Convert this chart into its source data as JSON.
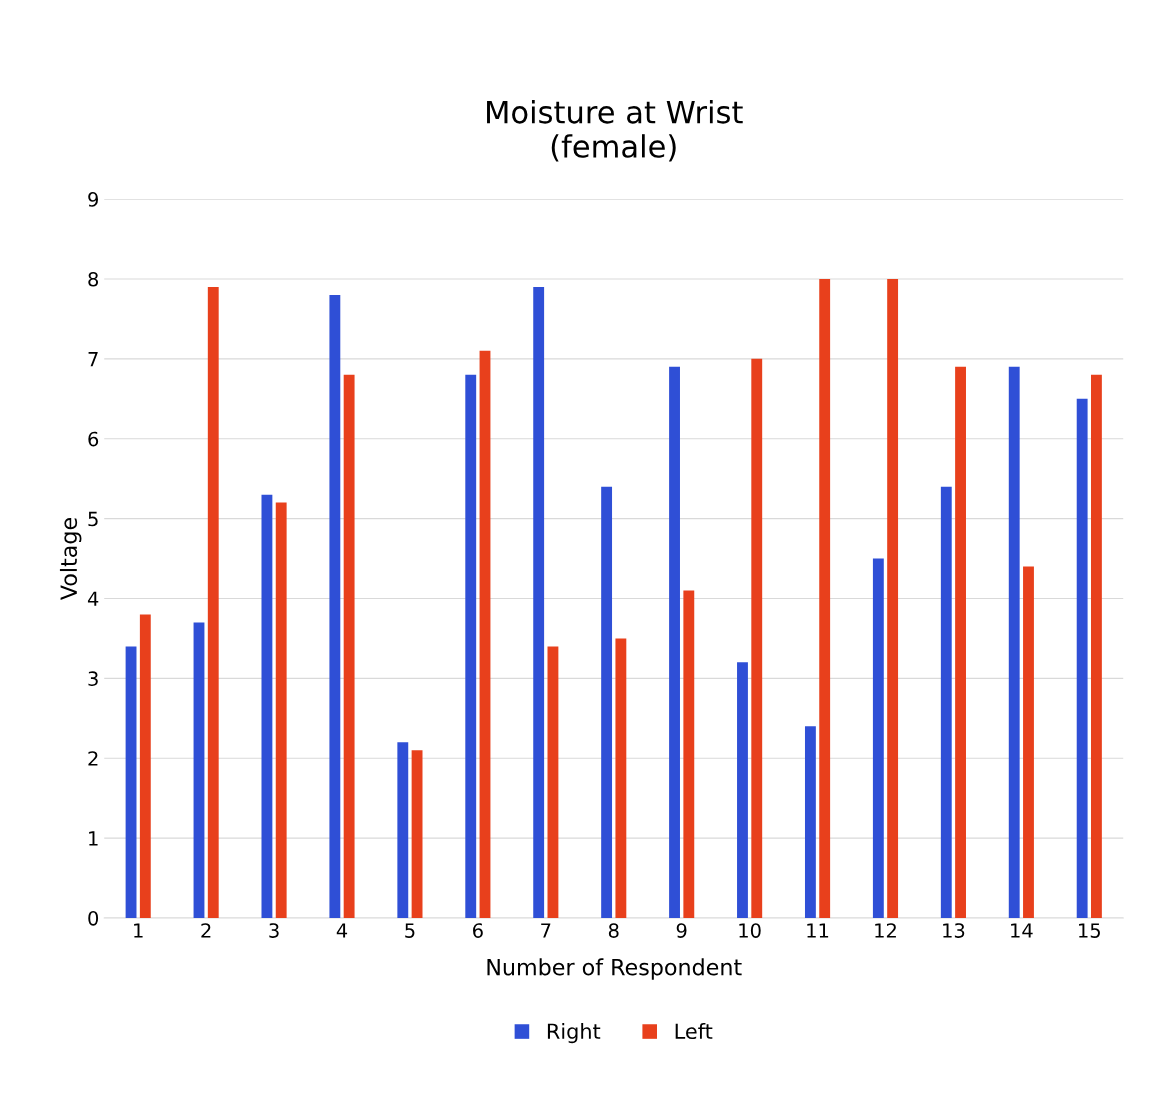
{
  "chart_data": {
    "type": "bar",
    "title": "Moisture at Wrist\n(female)",
    "xlabel": "Number of Respondent",
    "ylabel": "Voltage",
    "categories": [
      "1",
      "2",
      "3",
      "4",
      "5",
      "6",
      "7",
      "8",
      "9",
      "10",
      "11",
      "12",
      "13",
      "14",
      "15"
    ],
    "series": [
      {
        "name": "Right",
        "color": "#2f4fd6",
        "values": [
          3.4,
          3.7,
          5.3,
          7.8,
          2.2,
          6.8,
          7.9,
          5.4,
          6.9,
          3.2,
          2.4,
          4.5,
          5.4,
          6.9,
          6.5
        ]
      },
      {
        "name": "Left",
        "color": "#e8401c",
        "values": [
          3.8,
          7.9,
          5.2,
          6.8,
          2.1,
          7.1,
          3.4,
          3.5,
          4.1,
          7.0,
          8.0,
          8.0,
          6.9,
          4.4,
          6.8
        ]
      }
    ],
    "ylim": [
      0,
      9
    ],
    "yticks": [
      0,
      1,
      2,
      3,
      4,
      5,
      6,
      7,
      8,
      9
    ],
    "grid": "y",
    "legend": "bottom"
  }
}
